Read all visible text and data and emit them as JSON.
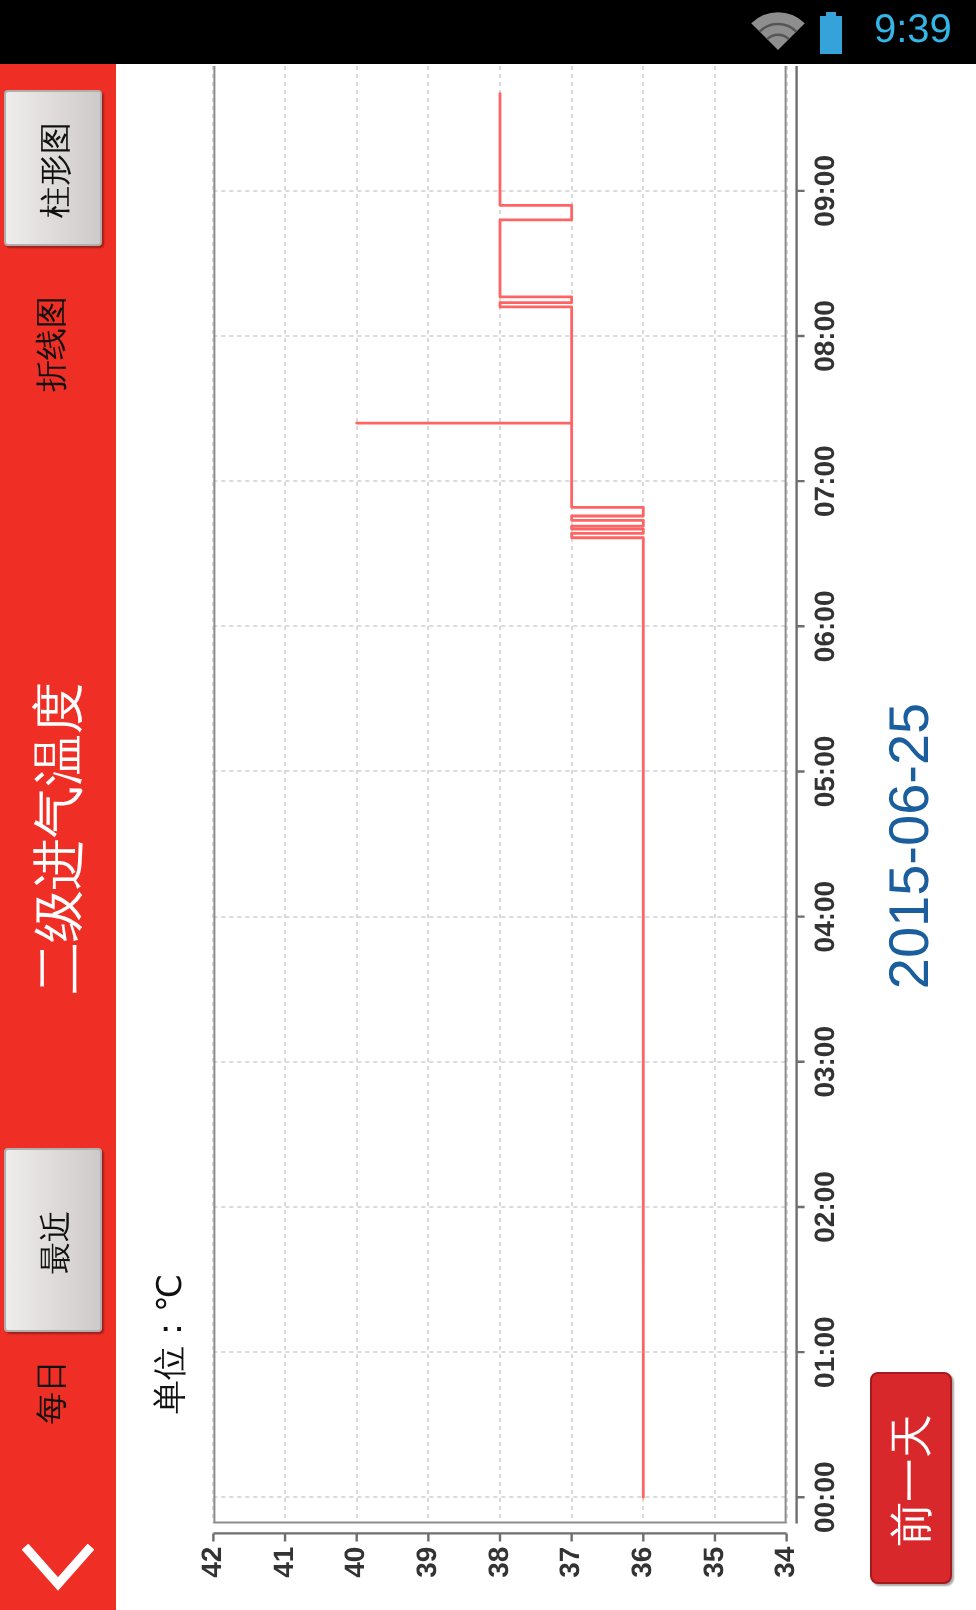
{
  "chart_data": {
    "type": "line",
    "title": "二级进气温度",
    "ylabel": "2015-06-25",
    "annotations": [
      "柱形图",
      "折线图",
      "最近",
      "每日",
      "前一天",
      "9:39",
      "单位：℃"
    ],
    "x": [
      36,
      36,
      37,
      37,
      36,
      36,
      37,
      37,
      36,
      36,
      37,
      37,
      36,
      36,
      37,
      37,
      40,
      37,
      37,
      38,
      38,
      37,
      37,
      38,
      38,
      37,
      37,
      38,
      38
    ],
    "series": [
      {
        "color": "#ff6464",
        "values": [
          0,
          6.61,
          6.61,
          6.64,
          6.64,
          6.67,
          6.67,
          6.69,
          6.69,
          6.73,
          6.73,
          6.76,
          6.76,
          6.82,
          6.82,
          7.4,
          7.4,
          7.4,
          8.2,
          8.2,
          8.23,
          8.23,
          8.27,
          8.27,
          8.8,
          8.8,
          8.9,
          8.9,
          9.67
        ]
      }
    ],
    "xlim": [
      42,
      34
    ],
    "xticks": [
      42,
      41,
      40,
      39,
      38,
      37,
      36,
      35,
      34
    ],
    "ylim": [
      -0.18,
      9.86
    ],
    "yticks": [
      {
        "value": 0,
        "label": "00:00"
      },
      {
        "value": 1,
        "label": "01:00"
      },
      {
        "value": 2,
        "label": "02:00"
      },
      {
        "value": 3,
        "label": "03:00"
      },
      {
        "value": 4,
        "label": "04:00"
      },
      {
        "value": 5,
        "label": "05:00"
      },
      {
        "value": 6,
        "label": "06:00"
      },
      {
        "value": 7,
        "label": "07:00"
      },
      {
        "value": 8,
        "label": "08:00"
      },
      {
        "value": 9,
        "label": "09:00"
      }
    ],
    "grid": true,
    "marker": "none"
  }
}
